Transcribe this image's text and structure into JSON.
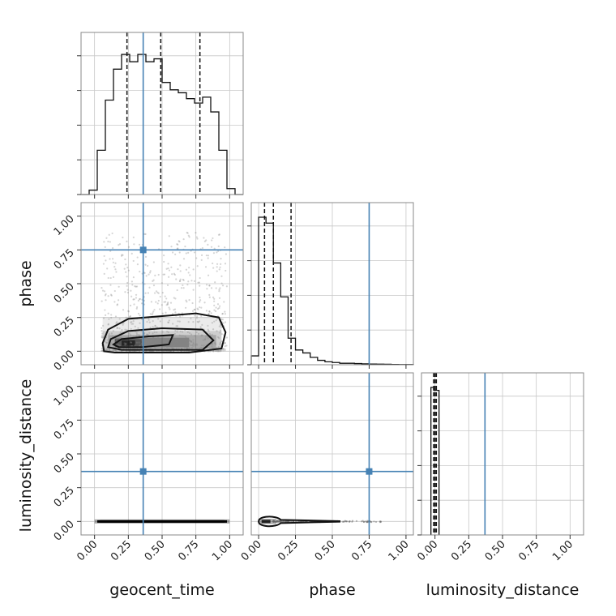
{
  "chart_data": {
    "type": "corner",
    "parameters": [
      "geocent_time",
      "phase",
      "luminosity_distance"
    ],
    "axis_labels": {
      "x": [
        "geocent_time",
        "phase",
        "luminosity_distance"
      ],
      "y": [
        "phase",
        "luminosity_distance"
      ]
    },
    "tick_labels": [
      "0.00",
      "0.25",
      "0.50",
      "0.75",
      "1.00"
    ],
    "tick_values": [
      0,
      0.25,
      0.5,
      0.75,
      1.0
    ],
    "grid": true,
    "truth_color": "#4682b4",
    "injection": {
      "geocent_time": 0.36,
      "phase": 0.75,
      "luminosity_distance": 0.37
    },
    "quantiles": {
      "geocent_time": [
        0.24,
        0.49,
        0.78
      ],
      "phase": [
        0.04,
        0.1,
        0.22
      ],
      "luminosity_distance": [
        -0.01,
        0.0,
        0.01
      ]
    },
    "marginals": [
      {
        "parameter": "geocent_time",
        "range": [
          -0.1,
          1.1
        ],
        "bins": [
          -0.1,
          -0.04,
          0.02,
          0.08,
          0.14,
          0.2,
          0.26,
          0.32,
          0.38,
          0.44,
          0.5,
          0.56,
          0.62,
          0.68,
          0.74,
          0.8,
          0.86,
          0.92,
          0.98,
          1.04,
          1.1
        ],
        "counts": [
          0,
          0.03,
          0.3,
          0.64,
          0.85,
          0.95,
          0.9,
          0.95,
          0.9,
          0.92,
          0.76,
          0.71,
          0.69,
          0.65,
          0.62,
          0.66,
          0.56,
          0.3,
          0.04,
          0
        ]
      },
      {
        "parameter": "phase",
        "range": [
          -0.05,
          1.05
        ],
        "bins": [
          -0.05,
          0.0,
          0.05,
          0.1,
          0.15,
          0.2,
          0.25,
          0.3,
          0.35,
          0.4,
          0.45,
          0.5,
          0.55,
          0.6,
          0.65,
          0.7,
          0.75,
          0.8,
          0.85,
          0.9,
          0.95,
          1.0,
          1.05
        ],
        "counts": [
          0.06,
          1.0,
          0.96,
          0.69,
          0.46,
          0.18,
          0.1,
          0.08,
          0.05,
          0.03,
          0.02,
          0.015,
          0.01,
          0.01,
          0.008,
          0.006,
          0.005,
          0.004,
          0.003,
          0.002,
          0.001,
          0.001
        ]
      },
      {
        "parameter": "luminosity_distance",
        "range": [
          -0.1,
          1.1
        ],
        "bins": [
          -0.03,
          -0.01,
          0.03
        ],
        "counts": [
          1.0,
          0.98
        ]
      }
    ],
    "scatter_panels": [
      {
        "x": "geocent_time",
        "y": "phase",
        "x_range": [
          -0.1,
          1.1
        ],
        "y_range": [
          -0.1,
          1.1
        ]
      },
      {
        "x": "geocent_time",
        "y": "luminosity_distance",
        "x_range": [
          -0.1,
          1.1
        ],
        "y_range": [
          -0.1,
          1.1
        ]
      },
      {
        "x": "phase",
        "y": "luminosity_distance",
        "x_range": [
          -0.05,
          1.05
        ],
        "y_range": [
          -0.1,
          1.1
        ]
      }
    ]
  }
}
